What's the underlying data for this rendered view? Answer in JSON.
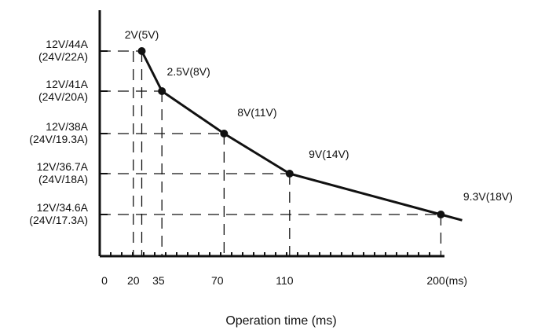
{
  "chart_data": {
    "type": "line",
    "title": "",
    "xlabel": "Operation time (ms)",
    "ylabel": "",
    "x_unit_label": "(ms)",
    "xlim": [
      0,
      220
    ],
    "x_ticks": [
      "0",
      "20",
      "35",
      "70",
      "110",
      "200"
    ],
    "y_levels": [
      {
        "line1": "12V/44A",
        "line2": "(24V/22A)"
      },
      {
        "line1": "12V/41A",
        "line2": "(24V/20A)"
      },
      {
        "line1": "12V/38A",
        "line2": "(24V/19.3A)"
      },
      {
        "line1": "12V/36.7A",
        "line2": "(24V/18A)"
      },
      {
        "line1": "12V/34.6A",
        "line2": "(24V/17.3A)"
      }
    ],
    "points": [
      {
        "x": 25,
        "y_level": 0,
        "label": "2V(5V)"
      },
      {
        "x": 37,
        "y_level": 1,
        "label": "2.5V(8V)"
      },
      {
        "x": 74,
        "y_level": 2,
        "label": "8V(11V)"
      },
      {
        "x": 113,
        "y_level": 3,
        "label": "9V(14V)"
      },
      {
        "x": 203,
        "y_level": 4,
        "label": "9.3V(18V)"
      }
    ],
    "grid": "dashed guide lines to axes",
    "line_color": "#111111"
  }
}
